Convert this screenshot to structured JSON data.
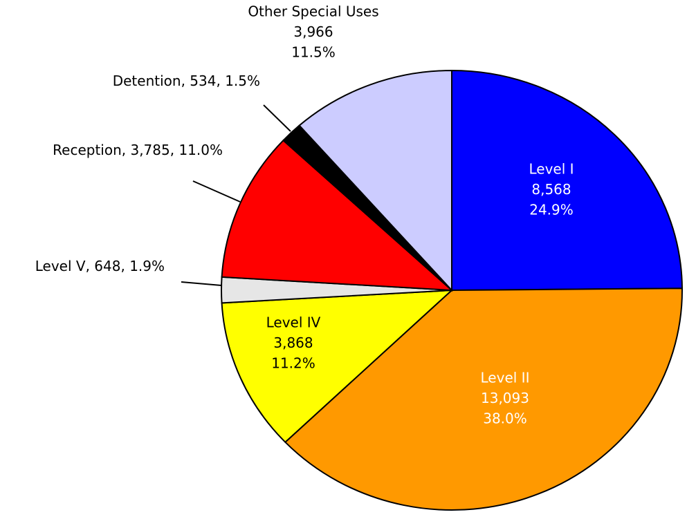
{
  "chart_data": {
    "type": "pie",
    "categories": [
      "Level I",
      "Level II",
      "Level IV",
      "Level V",
      "Reception",
      "Detention",
      "Other Special Uses"
    ],
    "values": [
      8568,
      13093,
      3868,
      648,
      3785,
      534,
      3966
    ],
    "value_labels": [
      "8,568",
      "13,093",
      "3,868",
      "648",
      "3,785",
      "534",
      "3,966"
    ],
    "percent_labels": [
      "24.9%",
      "38.0%",
      "11.2%",
      "1.9%",
      "11.0%",
      "1.5%",
      "11.5%"
    ],
    "colors": [
      "#0000ff",
      "#ff9900",
      "#ffff00",
      "#e6e6e6",
      "#ff0000",
      "#000000",
      "#ccccff"
    ]
  }
}
